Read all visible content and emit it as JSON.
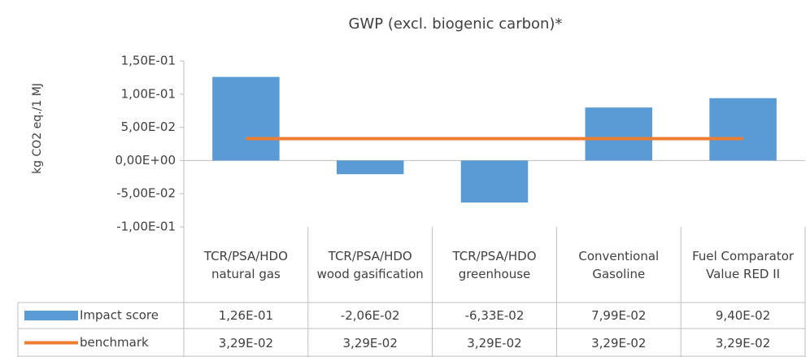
{
  "chart_data": {
    "type": "bar",
    "title": "GWP (excl. biogenic carbon)*",
    "y_label": "kg CO2 eq./1 MJ",
    "categories": [
      "TCR/PSA/HDO natural gas",
      "TCR/PSA/HDO wood gasification",
      "TCR/PSA/HDO greenhouse",
      "Conventional Gasoline",
      "Fuel Comparator Value RED II"
    ],
    "series": [
      {
        "name": "Impact score",
        "type": "bar",
        "color": "#5b9bd5",
        "values": [
          0.126,
          -0.0206,
          -0.0633,
          0.0799,
          0.094
        ],
        "value_labels": [
          "1,26E-01",
          "-2,06E-02",
          "-6,33E-02",
          "7,99E-02",
          "9,40E-02"
        ]
      },
      {
        "name": "benchmark",
        "type": "line",
        "color": "#ed7d31",
        "values": [
          0.0329,
          0.0329,
          0.0329,
          0.0329,
          0.0329
        ],
        "value_labels": [
          "3,29E-02",
          "3,29E-02",
          "3,29E-02",
          "3,29E-02",
          "3,29E-02"
        ]
      }
    ],
    "ylim": [
      -0.1,
      0.15
    ],
    "yticks": [
      {
        "value": -0.1,
        "label": "-1,00E-01"
      },
      {
        "value": -0.05,
        "label": "-5,00E-02"
      },
      {
        "value": 0,
        "label": "0,00E+00"
      },
      {
        "value": 0.05,
        "label": "5,00E-02"
      },
      {
        "value": 0.1,
        "label": "1,00E-01"
      },
      {
        "value": 0.15,
        "label": "1,50E-01"
      }
    ],
    "grid": false,
    "data_table": true
  }
}
